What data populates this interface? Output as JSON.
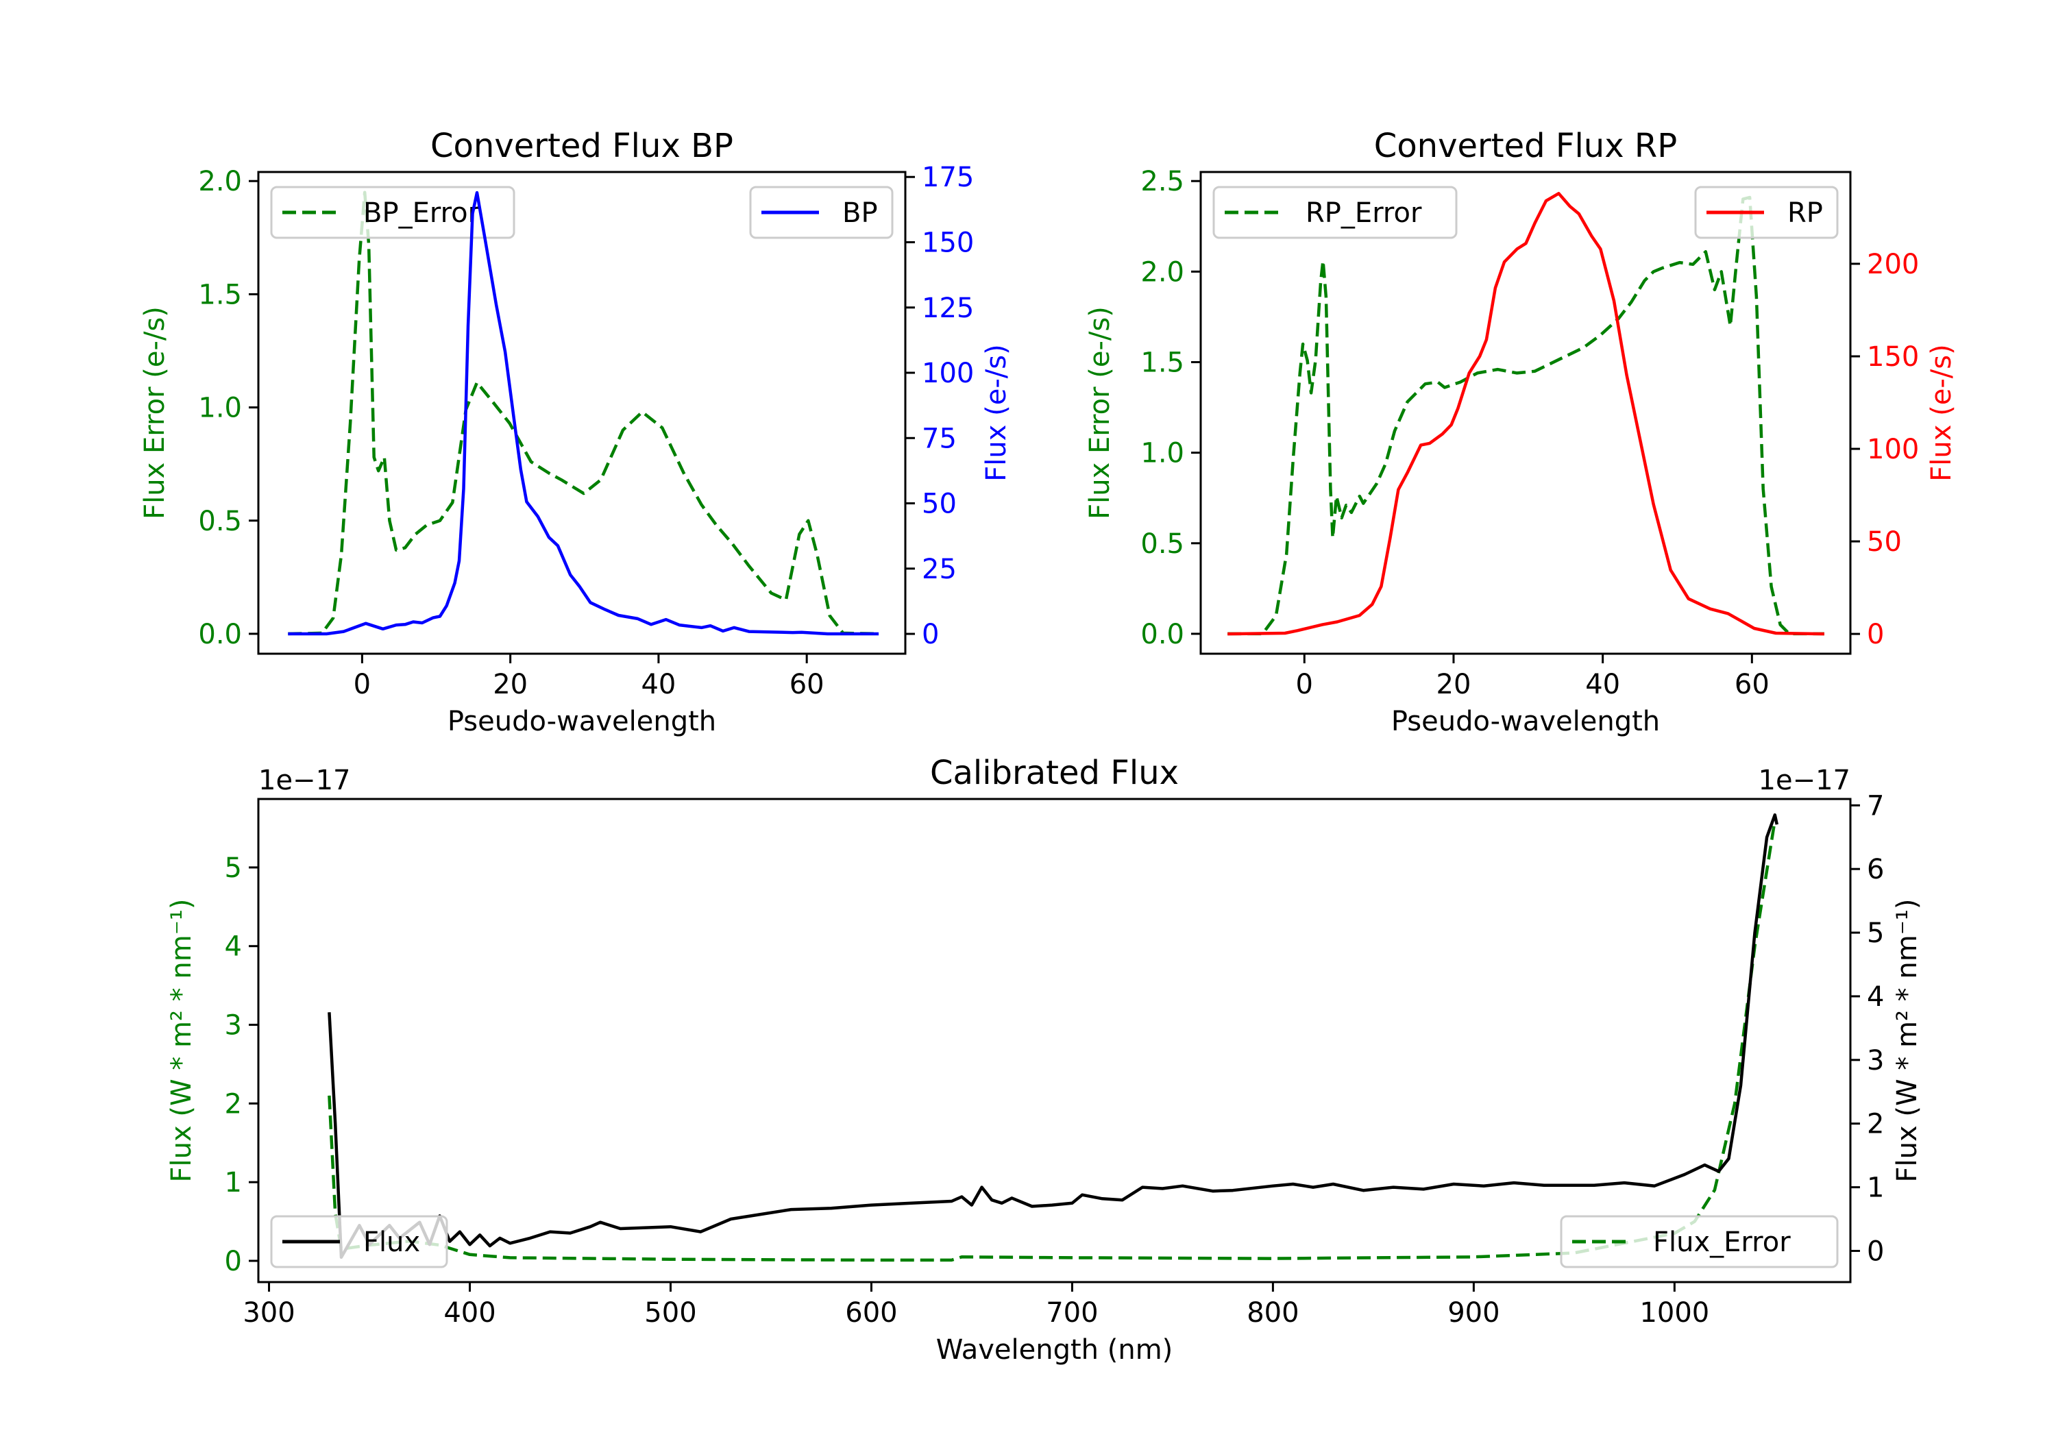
{
  "chart_data": [
    {
      "type": "line",
      "title": "Converted Flux BP",
      "xlabel": "Pseudo-wavelength",
      "xlim": [
        -14,
        73.3
      ],
      "xticks": [
        0,
        20,
        40,
        60
      ],
      "xtick_labels": [
        "0",
        "20",
        "40",
        "60"
      ],
      "left_axis": {
        "label": "Flux Error (e-/s)",
        "color": "#008000",
        "ylim": [
          -0.088,
          2.04
        ],
        "ticks": [
          0,
          0.5,
          1.0,
          1.5,
          2.0
        ],
        "tick_labels": [
          "0.0",
          "0.5",
          "1.0",
          "1.5",
          "2.0"
        ]
      },
      "right_axis": {
        "label": "Flux (e-/s)",
        "color": "#0000ff",
        "ylim": [
          -7.6,
          176.9
        ],
        "ticks": [
          0,
          25,
          50,
          75,
          100,
          125,
          150,
          175
        ],
        "tick_labels": [
          "0",
          "25",
          "50",
          "75",
          "100",
          "125",
          "150",
          "175"
        ]
      },
      "series": [
        {
          "name": "BP_Error",
          "axis": "left",
          "color": "#008000",
          "style": "dashed",
          "legend": "upper-left",
          "x": [
            -10,
            -5.4,
            -3.9,
            -2.8,
            -1.6,
            -0.4,
            0.35,
            0.9,
            1.6,
            2.2,
            3,
            3.7,
            4.6,
            5.8,
            7.2,
            8.7,
            10.5,
            12.2,
            14,
            15.5,
            17.5,
            19.9,
            22.8,
            25.2,
            26.9,
            29.9,
            32.2,
            35.2,
            37.8,
            40.5,
            43.4,
            45.8,
            47.8,
            49.9,
            52.2,
            55.2,
            57.2,
            59,
            60.2,
            61.4,
            63.1,
            64.9,
            69.7
          ],
          "y": [
            0,
            0.003,
            0.07,
            0.35,
            0.93,
            1.65,
            1.95,
            1.72,
            0.78,
            0.72,
            0.78,
            0.5,
            0.37,
            0.38,
            0.44,
            0.48,
            0.5,
            0.58,
            0.99,
            1.11,
            1.03,
            0.93,
            0.76,
            0.71,
            0.68,
            0.62,
            0.68,
            0.9,
            0.98,
            0.91,
            0.71,
            0.57,
            0.48,
            0.4,
            0.3,
            0.18,
            0.15,
            0.44,
            0.5,
            0.35,
            0.08,
            0.003,
            0
          ]
        },
        {
          "name": "BP",
          "axis": "right",
          "color": "#0000ff",
          "style": "solid",
          "legend": "upper-right",
          "x": [
            -10,
            -4.8,
            -2.5,
            0.5,
            2.8,
            4.6,
            5.8,
            6.9,
            8.1,
            9.6,
            10.5,
            11.4,
            12.5,
            13.1,
            13.7,
            14.3,
            14.9,
            15.5,
            16.6,
            18.1,
            19.3,
            20.5,
            21.4,
            22.2,
            23.7,
            25.2,
            26.4,
            28.1,
            29.3,
            30.8,
            32.8,
            34.6,
            37.2,
            39,
            41,
            42.8,
            45.8,
            47,
            48.7,
            50.2,
            52.2,
            58.1,
            59.3,
            62.8,
            69.7
          ],
          "y": [
            0,
            0,
            0.9,
            4,
            1.9,
            3.4,
            3.6,
            4.6,
            4.2,
            6.2,
            6.7,
            10.8,
            19.5,
            28,
            55.6,
            118,
            161,
            169,
            151,
            126,
            108,
            82,
            63,
            50.6,
            45,
            37,
            33.8,
            22.6,
            18.3,
            12,
            9.3,
            7.1,
            5.8,
            3.6,
            5.5,
            3.4,
            2.4,
            3.1,
            1.1,
            2.4,
            0.9,
            0.5,
            0.6,
            0,
            0
          ]
        }
      ]
    },
    {
      "type": "line",
      "title": "Converted Flux RP",
      "xlabel": "Pseudo-wavelength",
      "xlim": [
        -13.9,
        73.2
      ],
      "xticks": [
        0,
        20,
        40,
        60
      ],
      "xtick_labels": [
        "0",
        "20",
        "40",
        "60"
      ],
      "left_axis": {
        "label": "Flux Error (e-/s)",
        "color": "#008000",
        "ylim": [
          -0.11,
          2.55
        ],
        "ticks": [
          0,
          0.5,
          1.0,
          1.5,
          2.0,
          2.5
        ],
        "tick_labels": [
          "0.0",
          "0.5",
          "1.0",
          "1.5",
          "2.0",
          "2.5"
        ]
      },
      "right_axis": {
        "label": "Flux (e-/s)",
        "color": "#ff0000",
        "ylim": [
          -10.7,
          249.6
        ],
        "ticks": [
          0,
          50,
          100,
          150,
          200
        ],
        "tick_labels": [
          "0",
          "50",
          "100",
          "150",
          "200"
        ]
      },
      "series": [
        {
          "name": "RP_Error",
          "axis": "left",
          "color": "#008000",
          "style": "dashed",
          "legend": "upper-left",
          "x": [
            -10.3,
            -5.6,
            -3.8,
            -2.4,
            -1.5,
            -0.6,
            -0.2,
            0.4,
            0.9,
            1.5,
            2.2,
            2.5,
            2.9,
            3.5,
            3.8,
            4.3,
            5,
            5.6,
            6.3,
            7.4,
            7.9,
            9.7,
            10.9,
            12.1,
            13.8,
            16.2,
            17.9,
            18.8,
            20.9,
            23.2,
            25.9,
            28.5,
            30.9,
            34.4,
            37.4,
            39.7,
            42.1,
            43.8,
            45.6,
            46.8,
            48,
            50.3,
            52.1,
            53.8,
            55,
            55.9,
            57.1,
            57.9,
            58.8,
            59.7,
            60.6,
            61.5,
            62.6,
            63.8,
            65,
            69.7
          ],
          "y": [
            0,
            0,
            0.1,
            0.44,
            0.97,
            1.44,
            1.6,
            1.51,
            1.33,
            1.51,
            1.95,
            2.06,
            1.86,
            0.8,
            0.53,
            0.76,
            0.64,
            0.71,
            0.67,
            0.76,
            0.72,
            0.83,
            0.94,
            1.12,
            1.28,
            1.38,
            1.39,
            1.36,
            1.39,
            1.44,
            1.46,
            1.44,
            1.45,
            1.52,
            1.58,
            1.65,
            1.74,
            1.83,
            1.95,
            2.0,
            2.02,
            2.05,
            2.04,
            2.11,
            1.9,
            2.0,
            1.7,
            2.04,
            2.4,
            2.41,
            1.86,
            0.8,
            0.26,
            0.05,
            0,
            0
          ]
        },
        {
          "name": "RP",
          "axis": "right",
          "color": "#ff0000",
          "style": "solid",
          "legend": "upper-right",
          "x": [
            -10.3,
            -2.6,
            -0.9,
            2.4,
            4.4,
            7.4,
            9.1,
            10.3,
            11.5,
            12.6,
            13.8,
            15.6,
            16.8,
            18.5,
            19.7,
            20.6,
            22.1,
            23.5,
            24.4,
            25.6,
            26.8,
            28.5,
            29.7,
            30.9,
            32.4,
            34.1,
            35.6,
            36.8,
            38.5,
            39.7,
            41.5,
            43.2,
            45,
            46.8,
            49.1,
            51.5,
            54.4,
            56.8,
            60.3,
            63.2,
            69.7
          ],
          "y": [
            0,
            0.4,
            1.8,
            5,
            6.5,
            10,
            16,
            25.7,
            52,
            78,
            87,
            102,
            103,
            108,
            113,
            122,
            141,
            150,
            159,
            187,
            201,
            208,
            211,
            222,
            234,
            238,
            231,
            227,
            215,
            208,
            180,
            140,
            105,
            70,
            34.5,
            19,
            13.5,
            11,
            3,
            0.4,
            0
          ]
        }
      ]
    },
    {
      "type": "line",
      "title": "Calibrated Flux",
      "xlabel": "Wavelength (nm)",
      "xlim": [
        294.7,
        1087.6
      ],
      "xticks": [
        300,
        400,
        500,
        600,
        700,
        800,
        900,
        1000
      ],
      "xtick_labels": [
        "300",
        "400",
        "500",
        "600",
        "700",
        "800",
        "900",
        "1000"
      ],
      "left_axis": {
        "label": "Flux (W * m² * nm⁻¹)",
        "color": "#008000",
        "ylim": [
          -0.27,
          5.87
        ],
        "offset_text": "1e−17",
        "ticks": [
          0,
          1,
          2,
          3,
          4,
          5
        ],
        "tick_labels": [
          "0",
          "1",
          "2",
          "3",
          "4",
          "5"
        ]
      },
      "right_axis": {
        "label": "Flux (W * m² * nm⁻¹)",
        "color": "#000000",
        "ylim": [
          -0.49,
          7.1
        ],
        "offset_text": "1e−17",
        "ticks": [
          0,
          1,
          2,
          3,
          4,
          5,
          6,
          7
        ],
        "tick_labels": [
          "0",
          "1",
          "2",
          "3",
          "4",
          "5",
          "6",
          "7"
        ]
      },
      "series": [
        {
          "name": "Flux_Error",
          "axis": "left",
          "color": "#008000",
          "style": "dashed",
          "legend": "lower-right",
          "x": [
            330,
            333,
            336,
            350,
            370,
            385,
            400,
            420,
            500,
            600,
            640,
            645,
            700,
            800,
            900,
            950,
            980,
            1000,
            1010,
            1020,
            1030,
            1040,
            1050
          ],
          "y": [
            2.1,
            0.6,
            0.15,
            0.2,
            0.25,
            0.2,
            0.08,
            0.04,
            0.02,
            0.01,
            0.01,
            0.05,
            0.04,
            0.03,
            0.05,
            0.1,
            0.25,
            0.35,
            0.5,
            0.9,
            2.0,
            4.0,
            5.6
          ]
        },
        {
          "name": "Flux",
          "axis": "right",
          "color": "#000000",
          "style": "solid",
          "legend": "lower-left",
          "x": [
            330,
            333,
            336,
            345,
            350,
            360,
            365,
            375,
            380,
            385,
            390,
            395,
            400,
            405,
            410,
            415,
            420,
            430,
            440,
            450,
            460,
            465,
            475,
            500,
            515,
            530,
            540,
            560,
            580,
            600,
            620,
            640,
            645,
            650,
            655,
            660,
            665,
            670,
            680,
            690,
            700,
            705,
            715,
            725,
            735,
            745,
            755,
            770,
            780,
            800,
            810,
            820,
            830,
            845,
            860,
            875,
            890,
            905,
            920,
            935,
            960,
            975,
            990,
            1005,
            1015,
            1022,
            1027,
            1033,
            1040,
            1046,
            1050,
            1051
          ],
          "y": [
            3.75,
            2.0,
            -0.1,
            0.4,
            0.1,
            0.4,
            0.2,
            0.45,
            0.1,
            0.55,
            0.15,
            0.3,
            0.1,
            0.25,
            0.08,
            0.2,
            0.12,
            0.2,
            0.3,
            0.28,
            0.38,
            0.45,
            0.35,
            0.38,
            0.3,
            0.5,
            0.55,
            0.65,
            0.67,
            0.72,
            0.75,
            0.78,
            0.85,
            0.72,
            1.0,
            0.8,
            0.75,
            0.83,
            0.7,
            0.72,
            0.75,
            0.88,
            0.82,
            0.8,
            1.0,
            0.98,
            1.02,
            0.94,
            0.95,
            1.02,
            1.05,
            1.0,
            1.05,
            0.95,
            1.0,
            0.97,
            1.05,
            1.02,
            1.07,
            1.03,
            1.03,
            1.07,
            1.02,
            1.2,
            1.35,
            1.25,
            1.45,
            2.6,
            5.0,
            6.5,
            6.85,
            6.7
          ]
        }
      ]
    }
  ]
}
